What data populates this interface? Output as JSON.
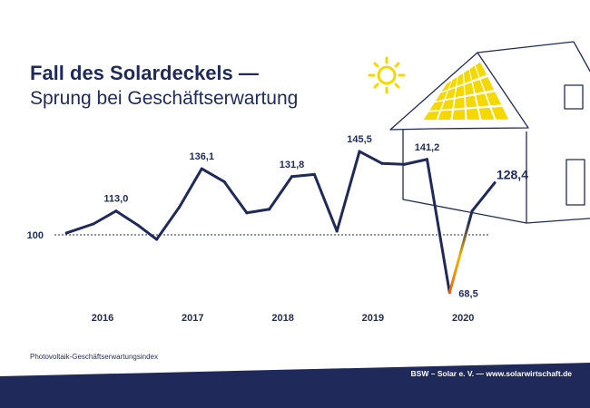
{
  "header": {
    "title": "Fall des Solardeckels —",
    "subtitle": "Sprung bei Geschäftserwartung"
  },
  "chart_data": {
    "type": "line",
    "x": [
      2015.6,
      2015.9,
      2016.15,
      2016.4,
      2016.6,
      2016.85,
      2017.1,
      2017.35,
      2017.6,
      2017.85,
      2018.1,
      2018.35,
      2018.6,
      2018.85,
      2019.1,
      2019.35,
      2019.6,
      2019.85,
      2020.1,
      2020.35
    ],
    "values": [
      101.0,
      106.0,
      113.0,
      105.0,
      97.5,
      115.0,
      136.1,
      129.0,
      112.0,
      114.0,
      131.8,
      133.0,
      102.0,
      145.5,
      139.0,
      138.5,
      141.2,
      68.5,
      113.0,
      128.4
    ],
    "labels": [
      {
        "index": 2,
        "text": "113,0"
      },
      {
        "index": 6,
        "text": "136,1"
      },
      {
        "index": 10,
        "text": "131,8"
      },
      {
        "index": 13,
        "text": "145,5"
      },
      {
        "index": 16,
        "text": "141,2"
      },
      {
        "index": 17,
        "text": "68,5"
      },
      {
        "index": 19,
        "text": "128,4"
      }
    ],
    "baseline": {
      "value": 100,
      "label": "100"
    },
    "xticks": [
      {
        "value": 2016.0,
        "label": "2016"
      },
      {
        "value": 2017.0,
        "label": "2017"
      },
      {
        "value": 2018.0,
        "label": "2018"
      },
      {
        "value": 2019.0,
        "label": "2019"
      },
      {
        "value": 2020.0,
        "label": "2020"
      }
    ],
    "ylabel": "Photovoltaik-Geschäftserwartungsindex",
    "line_color": "#1f2a5a",
    "highlight_colors": [
      "#f2b705",
      "#e8541a"
    ],
    "grid": false
  },
  "footer": {
    "source": "BSW – Solar e. V. — www.solarwirtschaft.de",
    "bar_color": "#1f2a5a"
  },
  "illustrations": {
    "sun_icon": "sun-icon",
    "house_icon": "house-with-solar-panels-icon",
    "sun_color": "#f5d800",
    "panel_color": "#f5d800"
  }
}
